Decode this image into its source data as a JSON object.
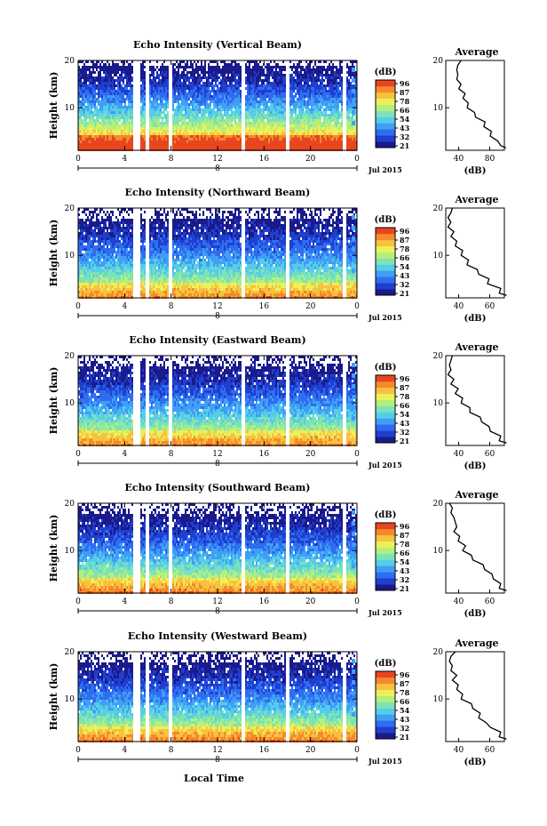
{
  "figure": {
    "x_axis_label": "Local Time",
    "date_label": "Jul 2015",
    "day_label": "8"
  },
  "colorbar": {
    "unit": "(dB)",
    "tick_labels": [
      "96",
      "87",
      "78",
      "66",
      "54",
      "43",
      "32",
      "21"
    ],
    "colors": [
      "#1a1a8c",
      "#1f3fcf",
      "#2f6df0",
      "#3f9ff5",
      "#56cde8",
      "#7de3b6",
      "#b4ef7c",
      "#ecf05a",
      "#f7c23f",
      "#f48a2c",
      "#e8461f"
    ]
  },
  "chart_data": [
    {
      "type": "heatmap",
      "title": "Echo Intensity (Vertical Beam)",
      "ylabel": "Height (km)",
      "xlabel": "Local Time",
      "xlim": [
        0,
        24
      ],
      "ylim": [
        1,
        20
      ],
      "x_ticks": [
        "0",
        "4",
        "8",
        "12",
        "16",
        "20",
        "0"
      ],
      "y_ticks": [
        "20",
        "10"
      ],
      "colorbar_range_db": [
        21,
        96
      ],
      "data_gaps_hours": [
        [
          4.6,
          5.3
        ],
        [
          5.8,
          6.1
        ],
        [
          7.7,
          8.0
        ],
        [
          14.0,
          14.3
        ],
        [
          17.8,
          18.1
        ],
        [
          22.7,
          23.0
        ]
      ],
      "profile": {
        "title": "Average",
        "xlabel": "(dB)",
        "x_ticks": [
          "40",
          "80"
        ],
        "y_ticks": [
          "20",
          "10"
        ],
        "xlim": [
          30,
          86
        ],
        "heights_km": [
          1.5,
          2,
          3,
          4,
          5,
          6,
          7,
          8,
          9,
          10,
          11,
          12,
          13,
          14,
          15,
          16,
          17,
          18,
          19,
          20
        ],
        "values_db": [
          86,
          84,
          78,
          74,
          72,
          68,
          66,
          60,
          56,
          52,
          50,
          48,
          47,
          44,
          43,
          42,
          40,
          42,
          40,
          46
        ]
      }
    },
    {
      "type": "heatmap",
      "title": "Echo Intensity (Northward Beam)",
      "ylabel": "Height (km)",
      "xlabel": "Local Time",
      "xlim": [
        0,
        24
      ],
      "ylim": [
        1,
        20
      ],
      "x_ticks": [
        "0",
        "4",
        "8",
        "12",
        "16",
        "20",
        "0"
      ],
      "y_ticks": [
        "20",
        "10"
      ],
      "colorbar_range_db": [
        21,
        96
      ],
      "data_gaps_hours": [
        [
          4.6,
          5.3
        ],
        [
          5.8,
          6.1
        ],
        [
          7.7,
          8.0
        ],
        [
          14.0,
          14.3
        ],
        [
          17.8,
          18.1
        ],
        [
          22.7,
          23.0
        ]
      ],
      "profile": {
        "title": "Average",
        "xlabel": "(dB)",
        "x_ticks": [
          "40",
          "60"
        ],
        "y_ticks": [
          "20",
          "10"
        ],
        "xlim": [
          30,
          70
        ],
        "heights_km": [
          1.5,
          2,
          3,
          4,
          5,
          6,
          7,
          8,
          9,
          10,
          11,
          12,
          13,
          14,
          15,
          16,
          17,
          18,
          19,
          20
        ],
        "values_db": [
          70,
          68,
          66,
          60,
          58,
          54,
          50,
          46,
          44,
          42,
          40,
          38,
          36,
          35,
          34,
          33,
          32,
          33,
          32,
          36
        ]
      }
    },
    {
      "type": "heatmap",
      "title": "Echo Intensity (Eastward Beam)",
      "ylabel": "Height (km)",
      "xlabel": "Local Time",
      "xlim": [
        0,
        24
      ],
      "ylim": [
        1,
        20
      ],
      "x_ticks": [
        "0",
        "4",
        "8",
        "12",
        "16",
        "20",
        "0"
      ],
      "y_ticks": [
        "20",
        "10"
      ],
      "colorbar_range_db": [
        21,
        96
      ],
      "data_gaps_hours": [
        [
          4.6,
          5.3
        ],
        [
          5.8,
          6.1
        ],
        [
          7.7,
          8.0
        ],
        [
          14.0,
          14.3
        ],
        [
          17.8,
          18.1
        ],
        [
          22.7,
          23.0
        ]
      ],
      "profile": {
        "title": "Average",
        "xlabel": "(dB)",
        "x_ticks": [
          "40",
          "60"
        ],
        "y_ticks": [
          "20",
          "10"
        ],
        "xlim": [
          30,
          70
        ],
        "heights_km": [
          1.5,
          2,
          3,
          4,
          5,
          6,
          7,
          8,
          9,
          10,
          11,
          12,
          13,
          14,
          15,
          16,
          17,
          18,
          19,
          20
        ],
        "values_db": [
          70,
          68,
          66,
          62,
          58,
          56,
          52,
          48,
          45,
          42,
          40,
          38,
          37,
          35,
          34,
          33,
          32,
          34,
          32,
          36
        ]
      }
    },
    {
      "type": "heatmap",
      "title": "Echo Intensity (Southward Beam)",
      "ylabel": "Height (km)",
      "xlabel": "Local Time",
      "xlim": [
        0,
        24
      ],
      "ylim": [
        1,
        20
      ],
      "x_ticks": [
        "0",
        "4",
        "8",
        "12",
        "16",
        "20",
        "0"
      ],
      "y_ticks": [
        "20",
        "10"
      ],
      "colorbar_range_db": [
        21,
        96
      ],
      "data_gaps_hours": [
        [
          4.6,
          5.3
        ],
        [
          5.8,
          6.1
        ],
        [
          7.7,
          8.0
        ],
        [
          14.0,
          14.3
        ],
        [
          17.8,
          18.1
        ],
        [
          22.7,
          23.0
        ]
      ],
      "profile": {
        "title": "Average",
        "xlabel": "(dB)",
        "x_ticks": [
          "40",
          "60"
        ],
        "y_ticks": [
          "20",
          "10"
        ],
        "xlim": [
          30,
          70
        ],
        "heights_km": [
          1.5,
          2,
          3,
          4,
          5,
          6,
          7,
          8,
          9,
          10,
          11,
          12,
          13,
          14,
          15,
          16,
          17,
          18,
          19,
          20
        ],
        "values_db": [
          70,
          68,
          66,
          64,
          60,
          58,
          54,
          50,
          46,
          43,
          42,
          40,
          38,
          37,
          36,
          38,
          34,
          35,
          33,
          34
        ]
      }
    },
    {
      "type": "heatmap",
      "title": "Echo Intensity (Westward Beam)",
      "ylabel": "Height (km)",
      "xlabel": "Local Time",
      "xlim": [
        0,
        24
      ],
      "ylim": [
        1,
        20
      ],
      "x_ticks": [
        "0",
        "4",
        "8",
        "12",
        "16",
        "20",
        "0"
      ],
      "y_ticks": [
        "20",
        "10"
      ],
      "colorbar_range_db": [
        21,
        96
      ],
      "data_gaps_hours": [
        [
          4.6,
          5.3
        ],
        [
          5.8,
          6.1
        ],
        [
          7.7,
          8.0
        ],
        [
          14.0,
          14.3
        ],
        [
          17.8,
          18.1
        ],
        [
          22.7,
          23.0
        ]
      ],
      "profile": {
        "title": "Average",
        "xlabel": "(dB)",
        "x_ticks": [
          "40",
          "60"
        ],
        "y_ticks": [
          "20",
          "10"
        ],
        "xlim": [
          30,
          70
        ],
        "heights_km": [
          1.5,
          2,
          3,
          4,
          5,
          6,
          7,
          8,
          9,
          10,
          11,
          12,
          13,
          14,
          15,
          16,
          17,
          18,
          19,
          20
        ],
        "values_db": [
          70,
          68,
          66,
          62,
          56,
          54,
          52,
          50,
          46,
          42,
          40,
          39,
          37,
          36,
          36,
          35,
          33,
          34,
          32,
          38
        ]
      }
    }
  ]
}
